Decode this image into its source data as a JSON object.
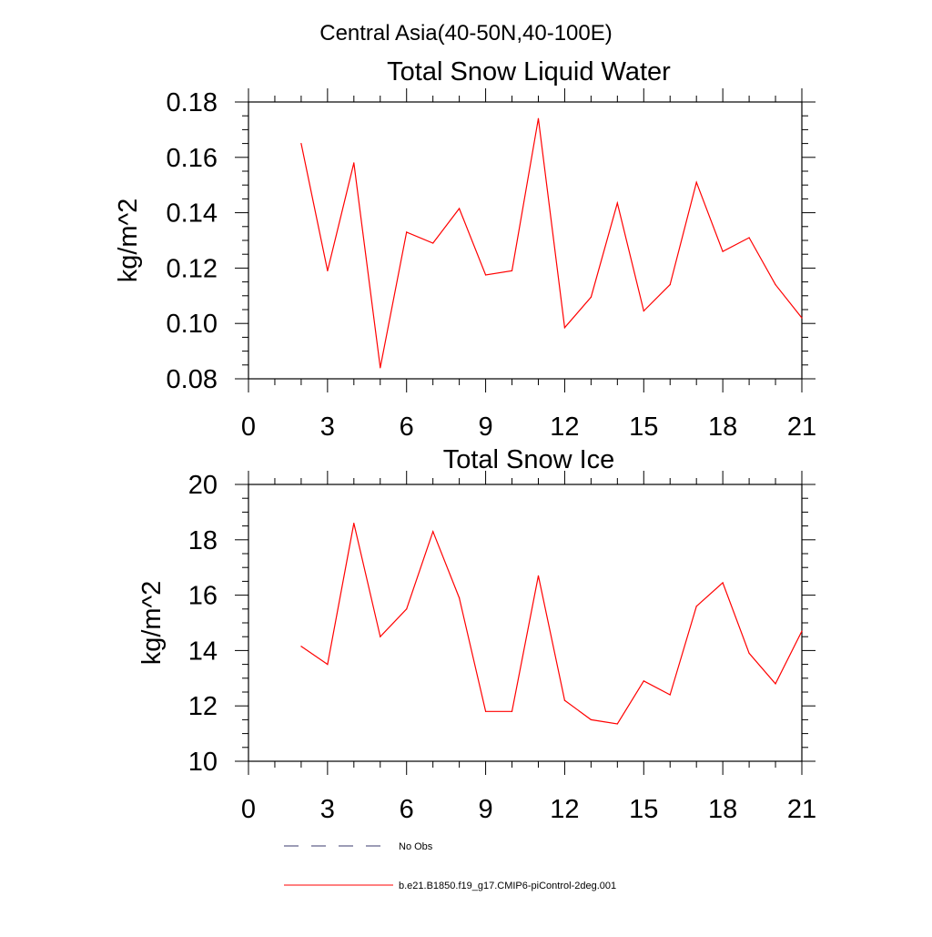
{
  "page_title": "Central Asia(40-50N,40-100E)",
  "chart_data": [
    {
      "type": "line",
      "title": "Total Snow Liquid Water",
      "ylabel": "kg/m^2",
      "xlabel": "",
      "xlim": [
        0,
        21
      ],
      "ylim": [
        0.08,
        0.18
      ],
      "xticks": [
        0,
        3,
        6,
        9,
        12,
        15,
        18,
        21
      ],
      "xtick_labels": [
        "0",
        "3",
        "6",
        "9",
        "12",
        "15",
        "18",
        "21"
      ],
      "yticks": [
        0.08,
        0.1,
        0.12,
        0.14,
        0.16,
        0.18
      ],
      "ytick_labels": [
        "0.08",
        "0.10",
        "0.12",
        "0.14",
        "0.16",
        "0.18"
      ],
      "x_minor_step": 1,
      "y_minor_step": 0.005,
      "series": [
        {
          "name": "b.e21.B1850.f19_g17.CMIP6-piControl-2deg.001",
          "color": "#ff0000",
          "x": [
            2,
            3,
            4,
            5,
            6,
            7,
            8,
            9,
            10,
            11,
            12,
            13,
            14,
            15,
            16,
            17,
            18,
            19,
            20,
            21
          ],
          "values": [
            0.165,
            0.119,
            0.158,
            0.084,
            0.133,
            0.129,
            0.1415,
            0.1175,
            0.119,
            0.174,
            0.0985,
            0.1095,
            0.1435,
            0.1045,
            0.114,
            0.151,
            0.126,
            0.131,
            0.114,
            0.102
          ]
        }
      ]
    },
    {
      "type": "line",
      "title": "Total Snow Ice",
      "ylabel": "kg/m^2",
      "xlabel": "",
      "xlim": [
        0,
        21
      ],
      "ylim": [
        10,
        20
      ],
      "xticks": [
        0,
        3,
        6,
        9,
        12,
        15,
        18,
        21
      ],
      "xtick_labels": [
        "0",
        "3",
        "6",
        "9",
        "12",
        "15",
        "18",
        "21"
      ],
      "yticks": [
        10,
        12,
        14,
        16,
        18,
        20
      ],
      "ytick_labels": [
        "10",
        "12",
        "14",
        "16",
        "18",
        "20"
      ],
      "x_minor_step": 1,
      "y_minor_step": 0.5,
      "series": [
        {
          "name": "b.e21.B1850.f19_g17.CMIP6-piControl-2deg.001",
          "color": "#ff0000",
          "x": [
            2,
            3,
            4,
            5,
            6,
            7,
            8,
            9,
            10,
            11,
            12,
            13,
            14,
            15,
            16,
            17,
            18,
            19,
            20,
            21
          ],
          "values": [
            14.15,
            13.5,
            18.6,
            14.5,
            15.5,
            18.3,
            15.9,
            11.8,
            11.8,
            16.7,
            12.2,
            11.5,
            11.35,
            12.9,
            12.4,
            15.6,
            16.45,
            13.9,
            12.8,
            14.7
          ]
        }
      ]
    }
  ],
  "legend": [
    {
      "label": "No Obs",
      "color": "#3a3a6e",
      "style": "dashed"
    },
    {
      "label": "b.e21.B1850.f19_g17.CMIP6-piControl-2deg.001",
      "color": "#ff0000",
      "style": "solid"
    }
  ]
}
